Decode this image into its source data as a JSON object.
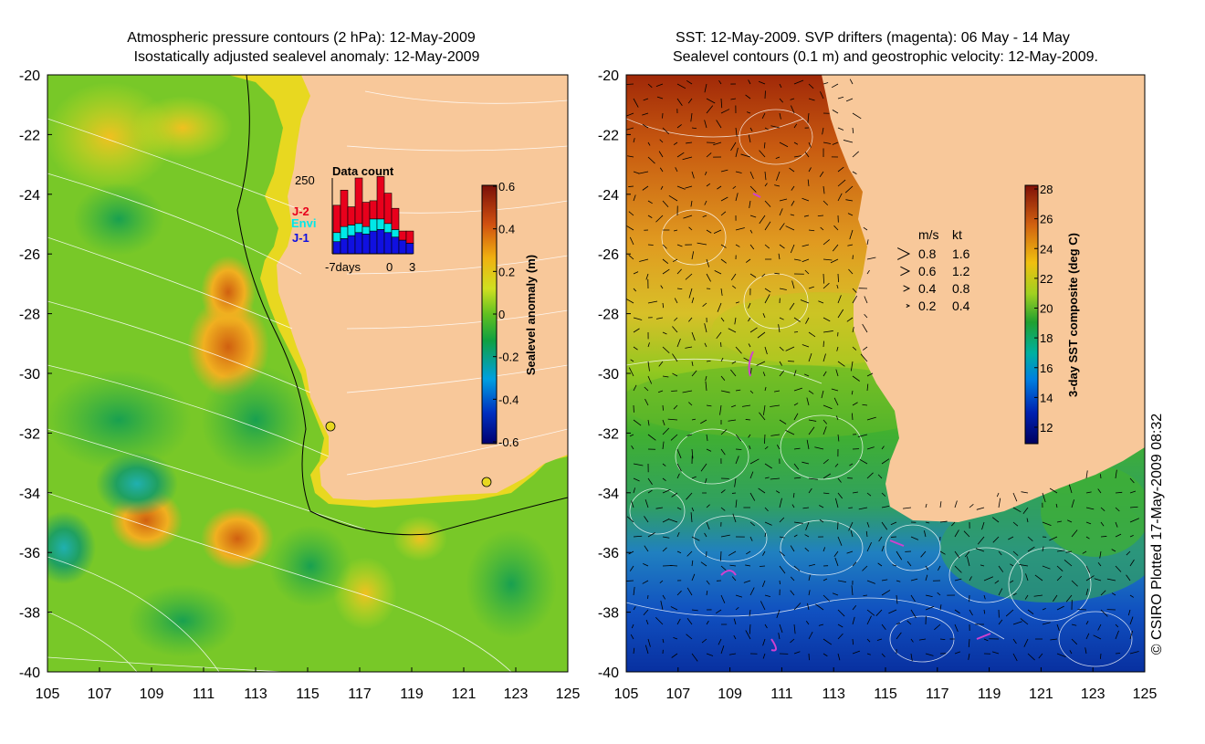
{
  "left_panel": {
    "title_line1": "Atmospheric pressure contours (2 hPa): 12-May-2009",
    "title_line2": "Isostatically adjusted sealevel anomaly: 12-May-2009",
    "colorbar": {
      "label": "Sealevel anomaly (m)",
      "ticks": [
        "0.6",
        "0.4",
        "0.2",
        "0",
        "-0.2",
        "-0.4",
        "-0.6"
      ]
    },
    "data_count": {
      "title": "Data count",
      "ymax_label": "250",
      "legend": [
        {
          "label": "J-2",
          "color": "#e8001c"
        },
        {
          "label": "Envi",
          "color": "#00e8e8"
        },
        {
          "label": "J-1",
          "color": "#1010e0"
        }
      ],
      "x_labels": [
        "-7days",
        "0",
        "3"
      ]
    }
  },
  "right_panel": {
    "title_line1": "SST: 12-May-2009. SVP drifters (magenta): 06 May - 14 May",
    "title_line2": "Sealevel contours (0.1 m) and geostrophic velocity: 12-May-2009.",
    "colorbar": {
      "label": "3-day SST composite (deg C)",
      "ticks": [
        "28",
        "26",
        "24",
        "22",
        "20",
        "18",
        "16",
        "14",
        "12"
      ]
    },
    "velocity_legend": {
      "header_ms": "m/s",
      "header_kt": "kt",
      "rows": [
        {
          "ms": "0.8",
          "kt": "1.6"
        },
        {
          "ms": "0.6",
          "kt": "1.2"
        },
        {
          "ms": "0.4",
          "kt": "0.8"
        },
        {
          "ms": "0.2",
          "kt": "0.4"
        }
      ]
    }
  },
  "credit": "© CSIRO Plotted 17-May-2009 08:32",
  "chart_data": [
    {
      "type": "heatmap",
      "title": "Atmospheric pressure contours (2 hPa): 12-May-2009 / Isostatically adjusted sealevel anomaly: 12-May-2009",
      "xlim": [
        105,
        125
      ],
      "ylim": [
        -40,
        -20
      ],
      "x_ticks": [
        "105",
        "107",
        "109",
        "111",
        "113",
        "115",
        "117",
        "119",
        "121",
        "123",
        "125"
      ],
      "y_ticks": [
        "-20",
        "-22",
        "-24",
        "-26",
        "-28",
        "-30",
        "-32",
        "-34",
        "-36",
        "-38",
        "-40"
      ],
      "colorbar_range": [
        -0.6,
        0.6
      ],
      "colorbar_label": "Sealevel anomaly (m)"
    },
    {
      "type": "bar",
      "title": "Data count",
      "ylim": [
        0,
        250
      ],
      "x_labels": [
        "-7days",
        "0",
        "3"
      ],
      "series": [
        {
          "name": "J-1",
          "values": [
            40,
            50,
            60,
            70,
            65,
            75,
            80,
            70,
            55,
            45,
            35
          ]
        },
        {
          "name": "Envi",
          "values": [
            30,
            40,
            35,
            30,
            25,
            40,
            35,
            30,
            25,
            0,
            0
          ]
        },
        {
          "name": "J-2",
          "values": [
            90,
            120,
            60,
            150,
            80,
            60,
            140,
            100,
            70,
            30,
            40
          ]
        }
      ]
    },
    {
      "type": "heatmap",
      "title": "SST: 12-May-2009. SVP drifters (magenta): 06 May - 14 May / Sealevel contours (0.1 m) and geostrophic velocity: 12-May-2009.",
      "xlim": [
        105,
        125
      ],
      "ylim": [
        -40,
        -20
      ],
      "x_ticks": [
        "105",
        "107",
        "109",
        "111",
        "113",
        "115",
        "117",
        "119",
        "121",
        "123",
        "125"
      ],
      "y_ticks": [
        "-20",
        "-22",
        "-24",
        "-26",
        "-28",
        "-30",
        "-32",
        "-34",
        "-36",
        "-38",
        "-40"
      ],
      "colorbar_range": [
        11,
        28
      ],
      "colorbar_label": "3-day SST composite (deg C)"
    }
  ]
}
